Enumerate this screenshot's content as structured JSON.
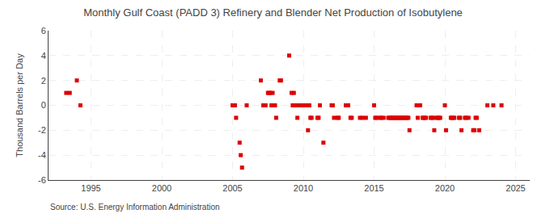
{
  "chart_data": {
    "type": "scatter",
    "title": "Monthly Gulf Coast (PADD 3) Refinery and Blender Net Production of Isobutylene",
    "ylabel": "Thousand Barrels per Day",
    "annotations": [
      "Source: U.S. Energy Information Administration"
    ],
    "color": "#dd0000",
    "marker": "square",
    "grid": true,
    "xlim": [
      1992.0,
      2026.0
    ],
    "ylim": [
      -6,
      6
    ],
    "xticks": [
      1995,
      2000,
      2005,
      2010,
      2015,
      2020,
      2025
    ],
    "yticks": [
      -6,
      -4,
      -2,
      0,
      2,
      4,
      6
    ],
    "x": [
      1993.25,
      1993.5,
      1994.0,
      1994.25,
      2005.0,
      2005.08,
      2005.17,
      2005.25,
      2005.5,
      2005.58,
      2005.67,
      2006.0,
      2007.0,
      2007.17,
      2007.33,
      2007.5,
      2007.58,
      2007.67,
      2007.75,
      2007.83,
      2008.0,
      2008.08,
      2008.33,
      2008.42,
      2009.0,
      2009.17,
      2009.25,
      2009.33,
      2009.42,
      2009.5,
      2009.58,
      2009.67,
      2009.75,
      2009.83,
      2009.92,
      2010.0,
      2010.08,
      2010.17,
      2010.25,
      2010.33,
      2010.42,
      2010.5,
      2010.58,
      2011.0,
      2011.08,
      2011.17,
      2011.42,
      2012.0,
      2012.08,
      2012.17,
      2012.42,
      2012.5,
      2013.0,
      2013.17,
      2013.33,
      2013.42,
      2014.0,
      2014.17,
      2014.42,
      2015.0,
      2015.08,
      2015.17,
      2015.42,
      2015.5,
      2015.67,
      2016.0,
      2016.08,
      2016.17,
      2016.25,
      2016.33,
      2016.42,
      2016.5,
      2016.58,
      2016.67,
      2016.75,
      2016.83,
      2016.92,
      2017.0,
      2017.08,
      2017.17,
      2017.25,
      2017.33,
      2017.42,
      2017.5,
      2018.0,
      2018.08,
      2018.25,
      2018.42,
      2018.5,
      2018.58,
      2018.67,
      2019.0,
      2019.08,
      2019.17,
      2019.25,
      2019.42,
      2019.5,
      2019.58,
      2019.67,
      2020.0,
      2020.08,
      2020.42,
      2020.5,
      2020.58,
      2020.67,
      2021.0,
      2021.08,
      2021.17,
      2021.42,
      2021.5,
      2021.67,
      2022.0,
      2022.08,
      2022.17,
      2022.25,
      2022.42,
      2023.0,
      2023.42,
      2024.0
    ],
    "values": [
      1,
      1,
      2,
      0,
      0,
      0,
      0,
      -1,
      -3,
      -4,
      -5,
      0,
      2,
      0,
      0,
      1,
      1,
      1,
      0,
      1,
      0,
      -1,
      2,
      2,
      4,
      1,
      0,
      1,
      0,
      0,
      -1,
      0,
      0,
      0,
      0,
      0,
      0,
      0,
      0,
      -2,
      0,
      -1,
      -1,
      -1,
      -1,
      0,
      -3,
      0,
      0,
      -1,
      -1,
      -1,
      0,
      0,
      -1,
      -1,
      -1,
      -1,
      -1,
      0,
      -1,
      -1,
      -1,
      -1,
      -1,
      -1,
      -1,
      -1,
      -1,
      -1,
      -1,
      -1,
      -1,
      -1,
      -1,
      -1,
      -1,
      -1,
      -1,
      -1,
      -1,
      -1,
      -1,
      -2,
      0,
      -1,
      0,
      -1,
      -1,
      -1,
      -1,
      -1,
      -1,
      -1,
      -2,
      -1,
      -1,
      -1,
      -1,
      0,
      -2,
      -1,
      -1,
      -1,
      -1,
      -1,
      -1,
      -2,
      -1,
      -1,
      -1,
      -2,
      -2,
      -1,
      -1,
      -2,
      0,
      0,
      0
    ]
  }
}
